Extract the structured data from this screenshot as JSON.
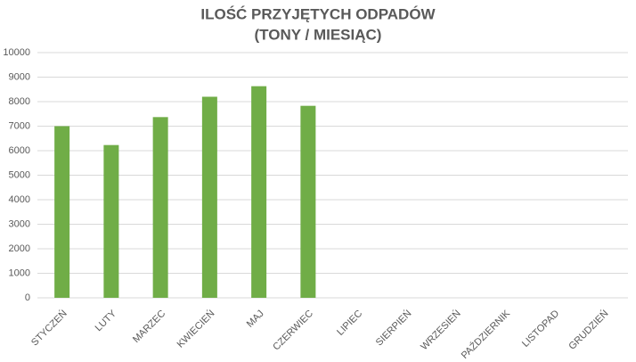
{
  "chart_data": {
    "type": "bar",
    "title": "ILOŚĆ PRZYJĘTYCH ODPADÓW",
    "subtitle": "(TONY / MIESIĄC)",
    "categories": [
      "STYCZEŃ",
      "LUTY",
      "MARZEC",
      "KWIECIEŃ",
      "MAJ",
      "CZERWIEC",
      "LIPIEC",
      "SIERPIEŃ",
      "WRZESIEŃ",
      "PAŹDZIERNIK",
      "LISTOPAD",
      "GRUDZIEŃ"
    ],
    "values": [
      7000,
      6230,
      7370,
      8200,
      8630,
      7830,
      null,
      null,
      null,
      null,
      null,
      null
    ],
    "color": "#70ad47",
    "ylim": [
      0,
      10000
    ],
    "yticks": [
      0,
      1000,
      2000,
      3000,
      4000,
      5000,
      6000,
      7000,
      8000,
      9000,
      10000
    ],
    "grid": true
  }
}
